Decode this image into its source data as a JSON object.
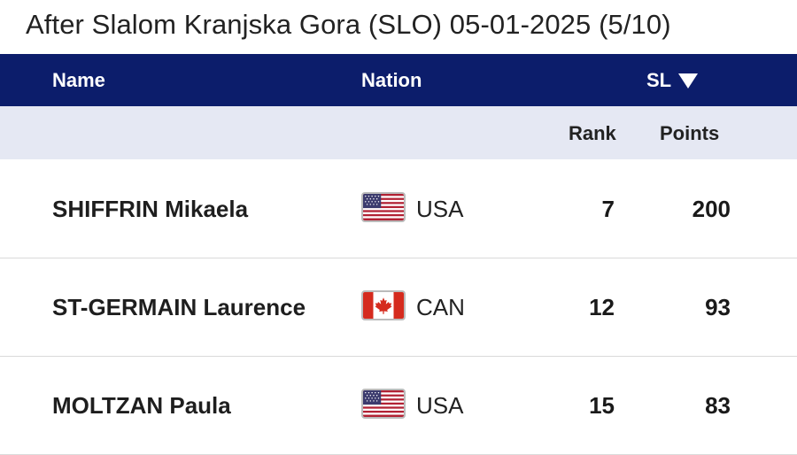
{
  "title": "After Slalom Kranjska Gora (SLO) 05-01-2025 (5/10)",
  "header": {
    "name": "Name",
    "nation": "Nation",
    "discipline": "SL",
    "sort_icon": "triangle-down-icon"
  },
  "subheader": {
    "rank": "Rank",
    "points": "Points"
  },
  "rows": [
    {
      "name": "SHIFFRIN Mikaela",
      "flag": "usa-flag-icon",
      "nation": "USA",
      "rank": "7",
      "points": "200"
    },
    {
      "name": "ST-GERMAIN Laurence",
      "flag": "canada-flag-icon",
      "nation": "CAN",
      "rank": "12",
      "points": "93"
    },
    {
      "name": "MOLTZAN Paula",
      "flag": "usa-flag-icon",
      "nation": "USA",
      "rank": "15",
      "points": "83"
    }
  ],
  "colors": {
    "header_bg": "#0c1d6b",
    "subheader_bg": "#e5e8f3"
  }
}
